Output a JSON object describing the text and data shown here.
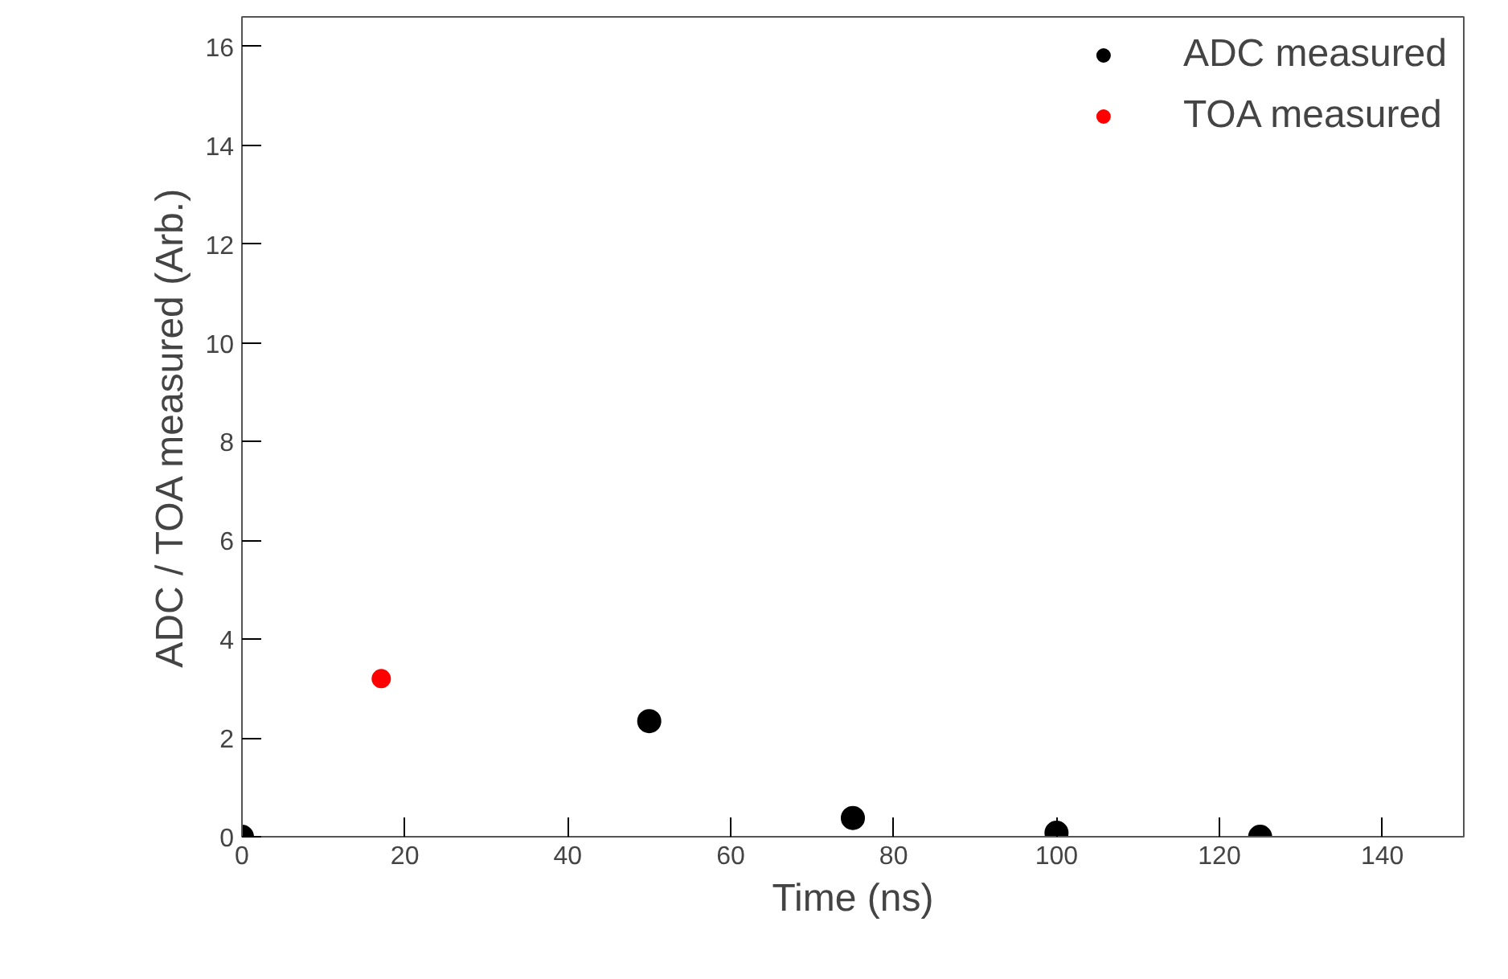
{
  "chart_data": {
    "type": "scatter",
    "xlabel": "Time (ns)",
    "ylabel": "ADC / TOA measured (Arb.)",
    "series": [
      {
        "name": "ADC measured",
        "color": "#000000",
        "x": [
          0,
          50,
          75,
          100,
          125
        ],
        "values": [
          0,
          2.34,
          0.38,
          0.08,
          0
        ]
      },
      {
        "name": "TOA measured",
        "color": "#ff0000",
        "x": [
          17.1
        ],
        "values": [
          3.2
        ]
      }
    ],
    "xlim": [
      0,
      150
    ],
    "ylim": [
      0,
      16.6
    ],
    "xticks": [
      0,
      20,
      40,
      60,
      80,
      100,
      120,
      140
    ],
    "yticks": [
      0,
      2,
      4,
      6,
      8,
      10,
      12,
      14,
      16
    ],
    "grid": false,
    "legend": "top right",
    "marker": "circle"
  }
}
